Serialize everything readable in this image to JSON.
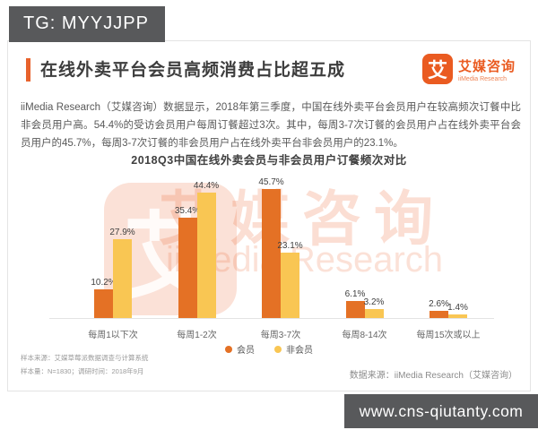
{
  "overlays": {
    "tg_badge": "TG: MYYJJPP",
    "website": "www.cns-qiutanty.com"
  },
  "header": {
    "title": "在线外卖平台会员高频消费占比超五成",
    "logo": {
      "glyph": "艾",
      "name_cn": "艾媒咨询",
      "name_en": "iiMedia Research"
    }
  },
  "intro_text": "iiMedia Research（艾媒咨询）数据显示，2018年第三季度，中国在线外卖平台会员用户在较高频次订餐中比非会员用户高。54.4%的受访会员用户每周订餐超过3次。其中，每周3-7次订餐的会员用户占在线外卖平台会员用户的45.7%，每周3-7次订餐的非会员用户占在线外卖平台非会员用户的23.1%。",
  "chart_data": {
    "type": "bar",
    "title": "2018Q3中国在线外卖会员与非会员用户订餐频次对比",
    "categories": [
      "每周1以下次",
      "每周1-2次",
      "每周3-7次",
      "每周8-14次",
      "每周15次或以上"
    ],
    "series": [
      {
        "name": "会员",
        "color": "#e47125",
        "values": [
          10.2,
          35.4,
          45.7,
          6.1,
          2.6
        ]
      },
      {
        "name": "非会员",
        "color": "#f9c653",
        "values": [
          27.9,
          44.4,
          23.1,
          3.2,
          1.4
        ]
      }
    ],
    "unit": "%",
    "ylim": [
      0,
      50
    ],
    "grid": false,
    "legend_position": "bottom"
  },
  "watermark": {
    "glyph": "艾",
    "text_cn": "艾媒咨询",
    "text_en": "iiMedia Research"
  },
  "footer": {
    "sample_source": "样本来源：艾媒草莓派数据调查与计算系统",
    "sample_info": "样本量：N=1830；调研时间：2018年9月",
    "data_source": "数据来源：iiMedia Research（艾媒咨询）"
  },
  "colors": {
    "brand": "#ea5b21",
    "accent": "#e8622c",
    "overlay_bg": "#58595b"
  }
}
